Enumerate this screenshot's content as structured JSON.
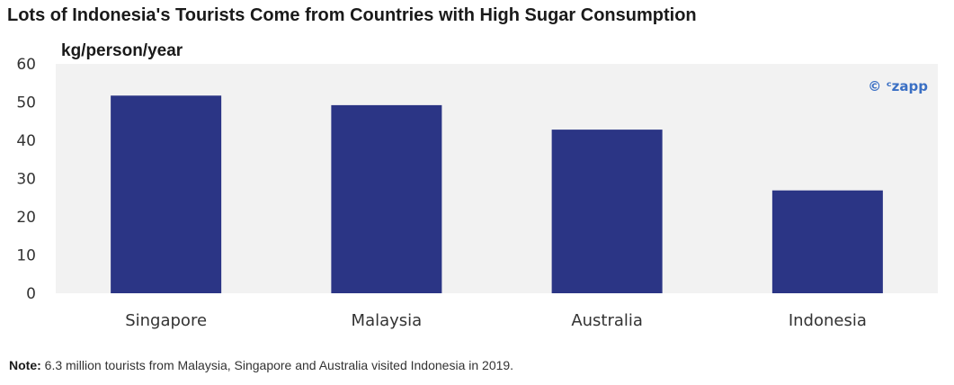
{
  "chart_data": {
    "type": "bar",
    "title": "Lots of Indonesia's Tourists Come from Countries with High Sugar Consumption",
    "ylabel": "kg/person/year",
    "xlabel": "",
    "categories": [
      "Singapore",
      "Malaysia",
      "Australia",
      "Indonesia"
    ],
    "values": [
      51.7,
      49.2,
      42.8,
      26.9
    ],
    "ylim": [
      0,
      60
    ],
    "yticks": [
      "0",
      "10",
      "20",
      "30",
      "40",
      "50",
      "60"
    ],
    "grid": false,
    "bar_color": "#2b3585",
    "plot_background": "#f2f2f2",
    "watermark": "© ᶜzapp"
  },
  "note": {
    "label": "Note:",
    "text": " 6.3 million tourists from Malaysia, Singapore and Australia visited Indonesia in 2019."
  }
}
